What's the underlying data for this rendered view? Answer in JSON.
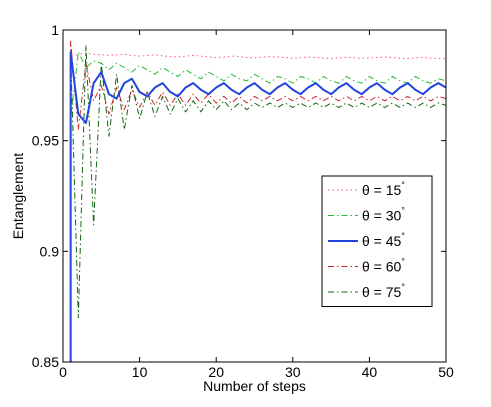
{
  "chart_data": {
    "type": "line",
    "xlabel": "Number of steps",
    "ylabel": "Entanglement",
    "xlim": [
      0,
      50
    ],
    "ylim": [
      0.85,
      1.0
    ],
    "xticks": [
      0,
      10,
      20,
      30,
      40,
      50
    ],
    "yticks": [
      0.85,
      0.9,
      0.95,
      1.0
    ],
    "ytick_labels": [
      "0.85",
      "0.9",
      "0.95",
      "1"
    ],
    "grid": false,
    "legend_position": "right",
    "x": [
      1,
      2,
      3,
      4,
      5,
      6,
      7,
      8,
      9,
      10,
      11,
      12,
      13,
      14,
      15,
      16,
      17,
      18,
      19,
      20,
      21,
      22,
      23,
      24,
      25,
      26,
      27,
      28,
      29,
      30,
      31,
      32,
      33,
      34,
      35,
      36,
      37,
      38,
      39,
      40,
      41,
      42,
      43,
      44,
      45,
      46,
      47,
      48,
      49,
      50
    ],
    "series": [
      {
        "name": "θ = 15°",
        "legend_text": "θ = 15",
        "degree_mark": "°",
        "color": "#ff5577",
        "style": "dotted",
        "values": [
          0.988,
          0.989,
          0.9895,
          0.989,
          0.9888,
          0.9885,
          0.9888,
          0.989,
          0.9885,
          0.9882,
          0.9885,
          0.9888,
          0.9883,
          0.988,
          0.9878,
          0.9882,
          0.9885,
          0.9882,
          0.9878,
          0.9875,
          0.9878,
          0.9882,
          0.988,
          0.9876,
          0.9874,
          0.9877,
          0.988,
          0.9878,
          0.9875,
          0.9872,
          0.9875,
          0.9878,
          0.9876,
          0.9873,
          0.9871,
          0.9874,
          0.9877,
          0.9875,
          0.9872,
          0.9873,
          0.9876,
          0.9878,
          0.9875,
          0.9872,
          0.9871,
          0.9874,
          0.9876,
          0.9873,
          0.9871,
          0.987
        ]
      },
      {
        "name": "θ = 30°",
        "legend_text": "θ = 30",
        "degree_mark": "°",
        "color": "#22bb33",
        "style": "dash-dot",
        "values": [
          0.96,
          0.99,
          0.983,
          0.986,
          0.985,
          0.982,
          0.985,
          0.983,
          0.981,
          0.984,
          0.982,
          0.98,
          0.983,
          0.981,
          0.979,
          0.982,
          0.98,
          0.978,
          0.981,
          0.979,
          0.977,
          0.98,
          0.978,
          0.977,
          0.98,
          0.978,
          0.976,
          0.979,
          0.978,
          0.976,
          0.979,
          0.978,
          0.976,
          0.979,
          0.977,
          0.976,
          0.979,
          0.977,
          0.976,
          0.979,
          0.977,
          0.976,
          0.979,
          0.977,
          0.976,
          0.979,
          0.977,
          0.976,
          0.978,
          0.977
        ]
      },
      {
        "name": "θ = 45°",
        "legend_text": "θ = 45",
        "degree_mark": "°",
        "color": "#2244dd",
        "style": "solid",
        "values": [
          0.99,
          0.962,
          0.958,
          0.976,
          0.981,
          0.971,
          0.969,
          0.976,
          0.978,
          0.972,
          0.97,
          0.974,
          0.976,
          0.972,
          0.97,
          0.974,
          0.976,
          0.973,
          0.971,
          0.974,
          0.976,
          0.973,
          0.971,
          0.974,
          0.976,
          0.973,
          0.971,
          0.974,
          0.976,
          0.973,
          0.971,
          0.974,
          0.976,
          0.973,
          0.971,
          0.974,
          0.976,
          0.973,
          0.971,
          0.974,
          0.976,
          0.973,
          0.971,
          0.974,
          0.976,
          0.973,
          0.971,
          0.974,
          0.976,
          0.974
        ]
      },
      {
        "name": "θ = 60°",
        "legend_text": "θ = 60",
        "degree_mark": "°",
        "color": "#cc2222",
        "style": "dash-dot",
        "values": [
          0.995,
          0.955,
          0.985,
          0.968,
          0.975,
          0.962,
          0.974,
          0.964,
          0.973,
          0.965,
          0.972,
          0.966,
          0.972,
          0.966,
          0.971,
          0.966,
          0.971,
          0.967,
          0.971,
          0.967,
          0.97,
          0.967,
          0.97,
          0.967,
          0.97,
          0.968,
          0.97,
          0.968,
          0.97,
          0.968,
          0.97,
          0.968,
          0.97,
          0.968,
          0.97,
          0.968,
          0.97,
          0.968,
          0.97,
          0.968,
          0.97,
          0.968,
          0.97,
          0.968,
          0.97,
          0.968,
          0.97,
          0.968,
          0.97,
          0.969
        ]
      },
      {
        "name": "θ = 75°",
        "legend_text": "θ = 75",
        "degree_mark": "°",
        "color": "#116611",
        "style": "dash-dot",
        "values": [
          0.99,
          0.87,
          0.993,
          0.912,
          0.985,
          0.952,
          0.98,
          0.955,
          0.975,
          0.96,
          0.972,
          0.961,
          0.97,
          0.962,
          0.969,
          0.963,
          0.968,
          0.963,
          0.968,
          0.964,
          0.968,
          0.964,
          0.967,
          0.964,
          0.967,
          0.965,
          0.967,
          0.965,
          0.967,
          0.965,
          0.967,
          0.965,
          0.967,
          0.965,
          0.967,
          0.965,
          0.967,
          0.965,
          0.967,
          0.965,
          0.967,
          0.965,
          0.967,
          0.965,
          0.967,
          0.965,
          0.967,
          0.965,
          0.967,
          0.966
        ]
      }
    ]
  }
}
